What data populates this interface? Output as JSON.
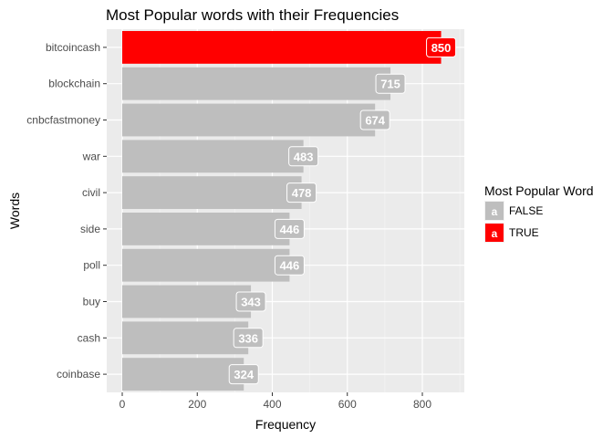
{
  "chart_data": {
    "type": "bar",
    "orientation": "horizontal",
    "title": "Most Popular words with their Frequencies",
    "xlabel": "Frequency",
    "ylabel": "Words",
    "xlim": [
      0,
      900
    ],
    "x_ticks": [
      0,
      200,
      400,
      600,
      800
    ],
    "categories": [
      "bitcoincash",
      "blockchain",
      "cnbcfastmoney",
      "war",
      "civil",
      "side",
      "poll",
      "buy",
      "cash",
      "coinbase"
    ],
    "values": [
      850,
      715,
      674,
      483,
      478,
      446,
      446,
      343,
      336,
      324
    ],
    "most_popular": [
      true,
      false,
      false,
      false,
      false,
      false,
      false,
      false,
      false,
      false
    ],
    "legend": {
      "title": "Most Popular Word",
      "placement": "right",
      "items": [
        {
          "label": "FALSE",
          "color": "#bebebe",
          "key_text": "a"
        },
        {
          "label": "TRUE",
          "color": "#ff0000",
          "key_text": "a"
        }
      ]
    },
    "grid": true,
    "colors": {
      "false": "#bebebe",
      "true": "#ff0000",
      "panel": "#ebebeb",
      "grid": "#ffffff"
    }
  }
}
